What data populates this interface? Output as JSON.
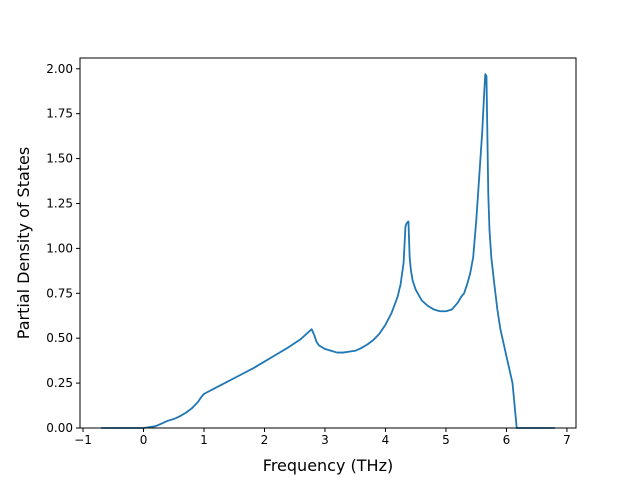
{
  "chart_data": {
    "type": "line",
    "title": "",
    "xlabel": "Frequency (THz)",
    "ylabel": "Partial Density of States",
    "xlim": [
      -1.05,
      7.15
    ],
    "ylim": [
      0.0,
      2.06
    ],
    "xticks": [
      -1,
      0,
      1,
      2,
      3,
      4,
      5,
      6,
      7
    ],
    "xtick_labels": [
      "−1",
      "0",
      "1",
      "2",
      "3",
      "4",
      "5",
      "6",
      "7"
    ],
    "yticks": [
      0.0,
      0.25,
      0.5,
      0.75,
      1.0,
      1.25,
      1.5,
      1.75,
      2.0
    ],
    "ytick_labels": [
      "0.00",
      "0.25",
      "0.50",
      "0.75",
      "1.00",
      "1.25",
      "1.50",
      "1.75",
      "2.00"
    ],
    "grid": false,
    "legend": "none",
    "series": [
      {
        "color": "#1f77b4",
        "x": [
          -0.7,
          -0.2,
          0.0,
          0.1,
          0.2,
          0.3,
          0.4,
          0.5,
          0.6,
          0.7,
          0.8,
          0.9,
          0.95,
          1.0,
          1.2,
          1.4,
          1.6,
          1.8,
          2.0,
          2.2,
          2.4,
          2.6,
          2.78,
          2.82,
          2.86,
          2.9,
          3.0,
          3.1,
          3.2,
          3.3,
          3.4,
          3.5,
          3.6,
          3.7,
          3.8,
          3.9,
          4.0,
          4.1,
          4.2,
          4.25,
          4.3,
          4.33,
          4.35,
          4.38,
          4.4,
          4.42,
          4.45,
          4.5,
          4.6,
          4.7,
          4.8,
          4.9,
          5.0,
          5.1,
          5.2,
          5.25,
          5.3,
          5.35,
          5.4,
          5.45,
          5.5,
          5.55,
          5.6,
          5.63,
          5.65,
          5.67,
          5.7,
          5.72,
          5.75,
          5.8,
          5.85,
          5.9,
          6.0,
          6.1,
          6.17,
          6.25,
          6.5,
          6.8
        ],
        "y": [
          0.0,
          0.0,
          0.0,
          0.005,
          0.01,
          0.025,
          0.04,
          0.05,
          0.065,
          0.085,
          0.11,
          0.145,
          0.17,
          0.19,
          0.225,
          0.26,
          0.295,
          0.33,
          0.37,
          0.41,
          0.45,
          0.495,
          0.55,
          0.52,
          0.48,
          0.46,
          0.44,
          0.43,
          0.42,
          0.42,
          0.425,
          0.43,
          0.445,
          0.465,
          0.49,
          0.525,
          0.575,
          0.64,
          0.73,
          0.8,
          0.92,
          1.12,
          1.14,
          1.15,
          0.95,
          0.88,
          0.82,
          0.77,
          0.71,
          0.68,
          0.66,
          0.65,
          0.65,
          0.66,
          0.7,
          0.73,
          0.75,
          0.8,
          0.86,
          0.95,
          1.15,
          1.4,
          1.65,
          1.85,
          1.97,
          1.96,
          1.3,
          1.1,
          0.95,
          0.8,
          0.66,
          0.55,
          0.4,
          0.25,
          0.0,
          0.0,
          0.0,
          0.0
        ]
      }
    ]
  }
}
